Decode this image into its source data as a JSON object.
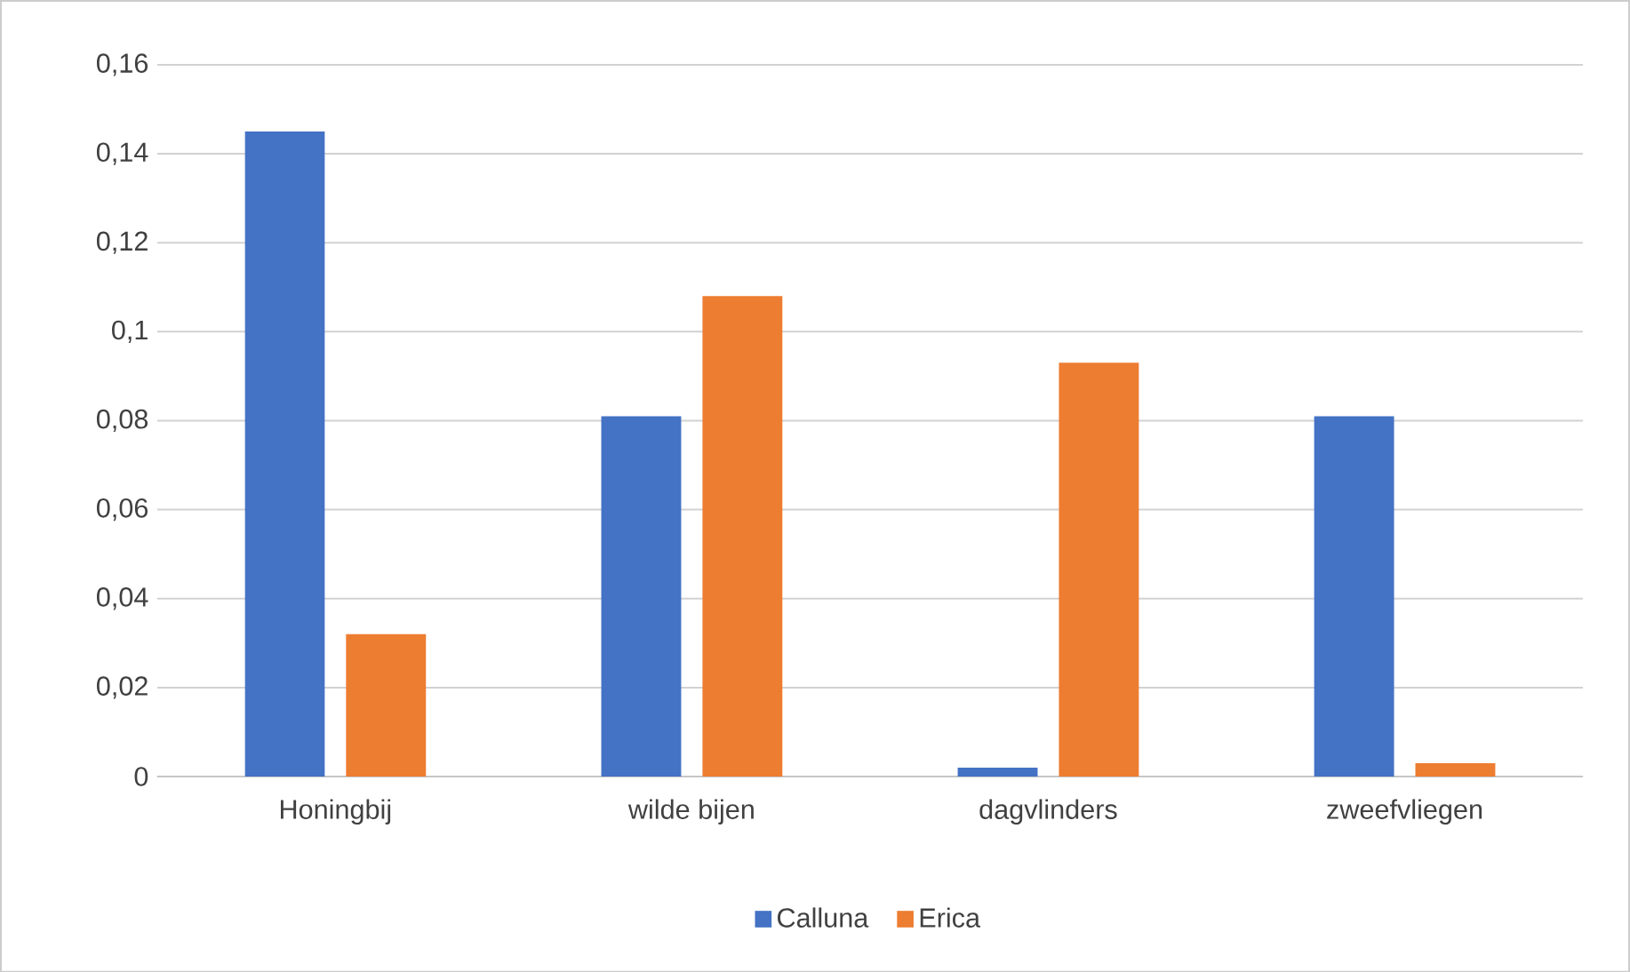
{
  "chart_data": {
    "type": "bar",
    "categories": [
      "Honingbij",
      "wilde bijen",
      "dagvlinders",
      "zweefvliegen"
    ],
    "series": [
      {
        "name": "Calluna",
        "color": "#4472c4",
        "values": [
          0.145,
          0.081,
          0.002,
          0.081
        ]
      },
      {
        "name": "Erica",
        "color": "#ed7d31",
        "values": [
          0.032,
          0.108,
          0.093,
          0.003
        ]
      }
    ],
    "ylim": [
      0,
      0.16
    ],
    "yticks": [
      {
        "value": 0,
        "label": "0"
      },
      {
        "value": 0.02,
        "label": "0,02"
      },
      {
        "value": 0.04,
        "label": "0,04"
      },
      {
        "value": 0.06,
        "label": "0,06"
      },
      {
        "value": 0.08,
        "label": "0,08"
      },
      {
        "value": 0.1,
        "label": "0,1"
      },
      {
        "value": 0.12,
        "label": "0,12"
      },
      {
        "value": 0.14,
        "label": "0,14"
      },
      {
        "value": 0.16,
        "label": "0,16"
      }
    ],
    "grid": "y",
    "legend": "bottom"
  }
}
